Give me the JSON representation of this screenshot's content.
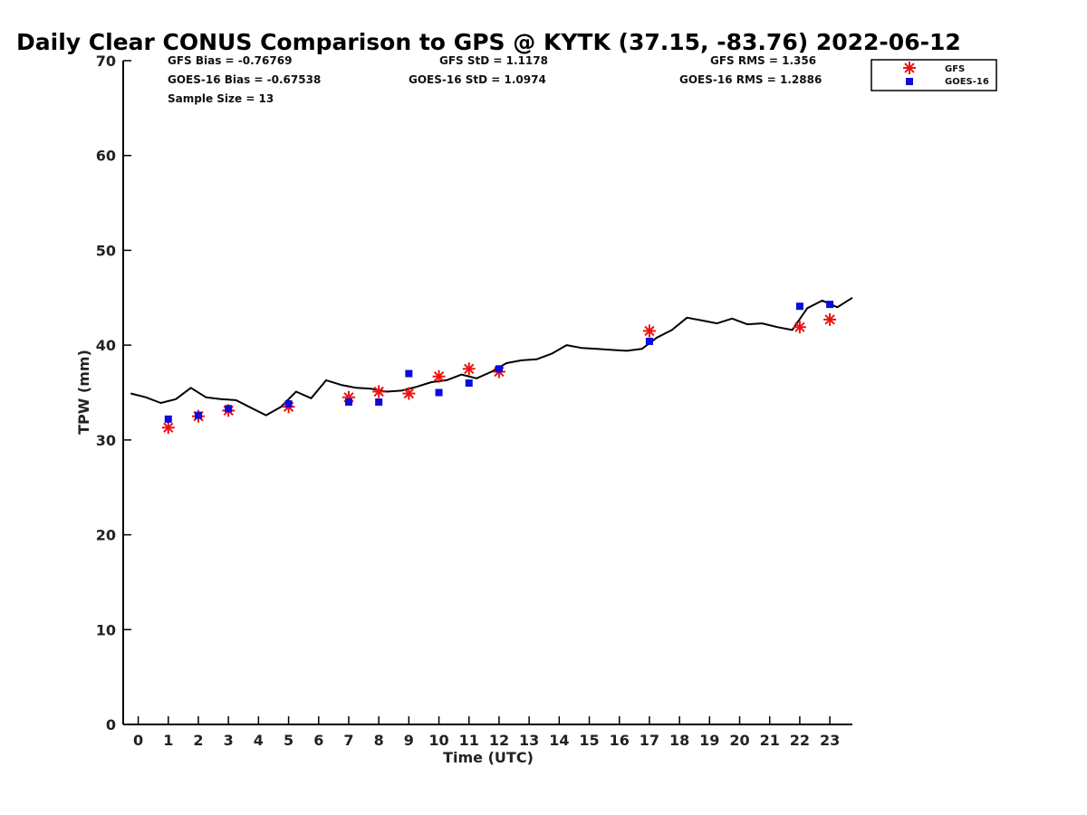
{
  "chart_data": {
    "type": "scatter",
    "title": "Daily Clear CONUS Comparison to GPS @ KYTK (37.15, -83.76) 2022-06-12",
    "xlabel": "Time (UTC)",
    "ylabel": "TPW (mm)",
    "xlim": [
      -0.5,
      23.75
    ],
    "ylim": [
      0,
      70
    ],
    "x_ticks": [
      0,
      1,
      2,
      3,
      4,
      5,
      6,
      7,
      8,
      9,
      10,
      11,
      12,
      13,
      14,
      15,
      16,
      17,
      18,
      19,
      20,
      21,
      22,
      23
    ],
    "y_ticks": [
      0,
      10,
      20,
      30,
      40,
      50,
      60,
      70
    ],
    "grid": false,
    "legend_position": "top-right",
    "stats": {
      "gfs_bias": "GFS Bias = -0.76769",
      "goes_bias": "GOES-16 Bias = -0.67538",
      "sample_size": "Sample Size = 13",
      "gfs_std": "GFS StD = 1.1178",
      "goes_std": "GOES-16 StD = 1.0974",
      "gfs_rms": "GFS RMS = 1.356",
      "goes_rms": "GOES-16 RMS = 1.2886"
    },
    "series": [
      {
        "name": "GPS",
        "kind": "line",
        "color": "#000000",
        "x": [
          -0.25,
          0.25,
          0.75,
          1.25,
          1.75,
          2.25,
          2.75,
          3.25,
          3.75,
          4.25,
          4.75,
          5.25,
          5.75,
          6.25,
          6.75,
          7.25,
          7.75,
          8.25,
          8.75,
          9.25,
          9.75,
          10.25,
          10.75,
          11.25,
          11.75,
          12.25,
          12.75,
          13.25,
          13.75,
          14.25,
          14.75,
          15.25,
          15.75,
          16.25,
          16.75,
          17.25,
          17.75,
          18.25,
          18.75,
          19.25,
          19.75,
          20.25,
          20.75,
          21.25,
          21.75,
          22.25,
          22.75,
          23.25,
          23.75
        ],
        "y": [
          34.9,
          34.5,
          33.9,
          34.3,
          35.5,
          34.5,
          34.3,
          34.2,
          33.4,
          32.6,
          33.5,
          35.1,
          34.4,
          36.3,
          35.8,
          35.5,
          35.4,
          35.1,
          35.2,
          35.6,
          36.1,
          36.3,
          36.9,
          36.5,
          37.2,
          38.1,
          38.4,
          38.5,
          39.1,
          40.0,
          39.7,
          39.6,
          39.5,
          39.4,
          39.6,
          40.8,
          41.6,
          42.9,
          42.6,
          42.3,
          42.8,
          42.2,
          42.3,
          41.9,
          41.6,
          43.9,
          44.7,
          44.0,
          45.0
        ]
      },
      {
        "name": "GFS",
        "kind": "marker",
        "marker": "asterisk",
        "color": "#ee1111",
        "x": [
          1,
          2,
          3,
          5,
          7,
          8,
          9,
          10,
          11,
          12,
          17,
          22,
          23
        ],
        "y": [
          31.3,
          32.5,
          33.1,
          33.5,
          34.5,
          35.1,
          34.9,
          36.7,
          37.5,
          37.2,
          41.5,
          41.9,
          42.7
        ]
      },
      {
        "name": "GOES-16",
        "kind": "marker",
        "marker": "square",
        "color": "#0b0bdd",
        "x": [
          1,
          2,
          3,
          5,
          7,
          8,
          9,
          10,
          11,
          12,
          17,
          22,
          23
        ],
        "y": [
          32.2,
          32.6,
          33.3,
          33.8,
          34.0,
          34.0,
          37.0,
          35.0,
          36.0,
          37.5,
          40.4,
          44.1,
          44.3
        ]
      }
    ],
    "legend": [
      {
        "label": "GFS",
        "marker": "asterisk",
        "color": "#ee1111"
      },
      {
        "label": "GOES-16",
        "marker": "square",
        "color": "#0b0bdd"
      }
    ]
  }
}
